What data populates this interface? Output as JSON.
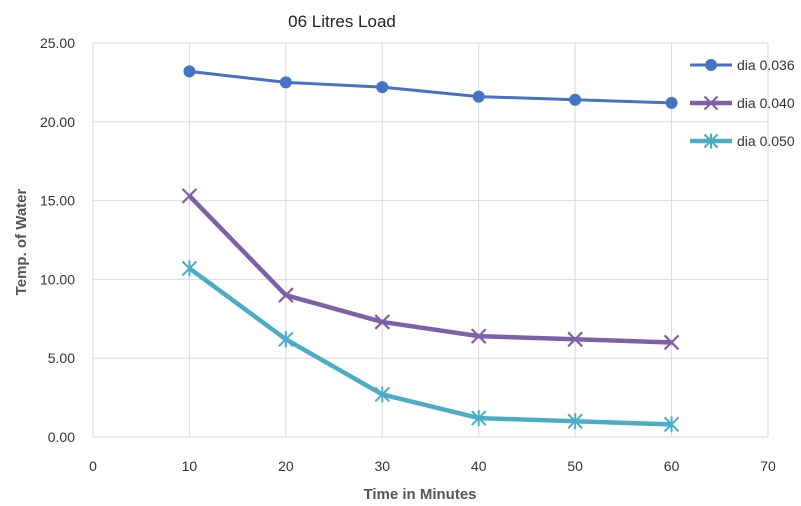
{
  "chart_data": {
    "type": "line",
    "title": "06 Litres Load",
    "xlabel": "Time in  Minutes",
    "ylabel": "Temp. of Water",
    "xlim": [
      0,
      70
    ],
    "ylim": [
      0,
      25
    ],
    "x_ticks": [
      0,
      10,
      20,
      30,
      40,
      50,
      60,
      70
    ],
    "y_ticks": [
      "0.00",
      "5.00",
      "10.00",
      "15.00",
      "20.00",
      "25.00"
    ],
    "grid": true,
    "legend_position": "right",
    "x": [
      10,
      20,
      30,
      40,
      50,
      60
    ],
    "series": [
      {
        "name": "dia 0.036",
        "values": [
          23.2,
          22.5,
          22.2,
          21.6,
          21.4,
          21.2
        ],
        "color": "#4472c4",
        "marker": "circle"
      },
      {
        "name": "dia 0.040",
        "values": [
          15.3,
          9.0,
          7.3,
          6.4,
          6.2,
          6.0
        ],
        "color": "#7f5fa8",
        "marker": "x"
      },
      {
        "name": "dia 0.050",
        "values": [
          10.7,
          6.2,
          2.7,
          1.2,
          1.0,
          0.8
        ],
        "color": "#4bacc6",
        "marker": "star"
      }
    ]
  }
}
